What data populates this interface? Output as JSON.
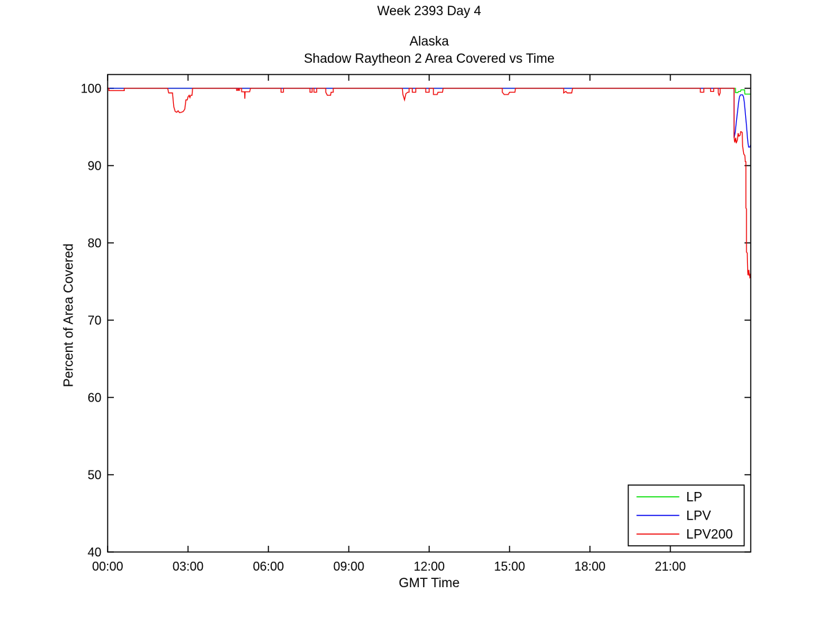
{
  "figure": {
    "background": "#ffffff",
    "text_color": "#000000"
  },
  "chart_data": {
    "type": "line",
    "title": "Week 2393 Day 4",
    "subtitle1": "Alaska",
    "subtitle2": "Shadow Raytheon 2 Area Covered vs Time",
    "xlabel": "GMT Time",
    "ylabel": "Percent of Area Covered",
    "xlim_hours": [
      0,
      24
    ],
    "ylim": [
      40,
      101.8
    ],
    "grid": false,
    "axis_color": "#000000",
    "x_tick_hours": [
      0,
      3,
      6,
      9,
      12,
      15,
      18,
      21
    ],
    "x_tick_labels": [
      "00:00",
      "03:00",
      "06:00",
      "09:00",
      "12:00",
      "15:00",
      "18:00",
      "21:00"
    ],
    "y_ticks": [
      40,
      50,
      60,
      70,
      80,
      90,
      100
    ],
    "y_tick_labels": [
      "40",
      "50",
      "60",
      "70",
      "80",
      "90",
      "100"
    ],
    "legend": {
      "position": "bottom-right",
      "entries": [
        {
          "label": "LP",
          "color": "#00dd00"
        },
        {
          "label": "LPV",
          "color": "#0000ee"
        },
        {
          "label": "LPV200",
          "color": "#ee0000"
        }
      ]
    },
    "series": [
      {
        "name": "LP",
        "color": "#00dd00",
        "points": [
          [
            0,
            100
          ],
          [
            23.43,
            100
          ],
          [
            23.43,
            99.45
          ],
          [
            23.52,
            99.45
          ],
          [
            23.55,
            99.6
          ],
          [
            23.62,
            99.6
          ],
          [
            23.64,
            99.8
          ],
          [
            23.77,
            99.8
          ],
          [
            23.78,
            99.25
          ],
          [
            24,
            99.25
          ]
        ]
      },
      {
        "name": "LPV",
        "color": "#0000ee",
        "points": [
          [
            0,
            100
          ],
          [
            23.38,
            100
          ],
          [
            23.38,
            93.6
          ],
          [
            23.42,
            94.3
          ],
          [
            23.46,
            95.5
          ],
          [
            23.5,
            96.8
          ],
          [
            23.55,
            98.2
          ],
          [
            23.58,
            98.9
          ],
          [
            23.62,
            99.15
          ],
          [
            23.7,
            99.15
          ],
          [
            23.73,
            98.9
          ],
          [
            23.76,
            98.2
          ],
          [
            23.79,
            97.2
          ],
          [
            23.82,
            96.0
          ],
          [
            23.85,
            94.8
          ],
          [
            23.88,
            93.6
          ],
          [
            23.9,
            92.9
          ],
          [
            23.92,
            92.4
          ],
          [
            23.97,
            92.4
          ],
          [
            24,
            92.7
          ]
        ]
      },
      {
        "name": "LPV200",
        "color": "#ee0000",
        "points": [
          [
            0,
            100
          ],
          [
            0.05,
            100
          ],
          [
            0.05,
            99.7
          ],
          [
            0.62,
            99.7
          ],
          [
            0.62,
            100
          ],
          [
            2.24,
            100
          ],
          [
            2.28,
            99.4
          ],
          [
            2.42,
            99.4
          ],
          [
            2.47,
            97.6
          ],
          [
            2.52,
            97.0
          ],
          [
            2.58,
            96.9
          ],
          [
            2.63,
            97.1
          ],
          [
            2.68,
            96.85
          ],
          [
            2.75,
            96.9
          ],
          [
            2.82,
            97.0
          ],
          [
            2.88,
            97.3
          ],
          [
            2.92,
            98.5
          ],
          [
            2.97,
            98.5
          ],
          [
            3.0,
            98.9
          ],
          [
            3.04,
            99.1
          ],
          [
            3.07,
            98.8
          ],
          [
            3.1,
            99.1
          ],
          [
            3.15,
            99.1
          ],
          [
            3.17,
            100
          ],
          [
            4.81,
            100
          ],
          [
            4.81,
            99.75
          ],
          [
            4.86,
            99.75
          ],
          [
            4.86,
            100
          ],
          [
            4.88,
            100
          ],
          [
            4.88,
            99.75
          ],
          [
            4.92,
            99.75
          ],
          [
            4.92,
            100
          ],
          [
            5.0,
            100
          ],
          [
            5.0,
            99.55
          ],
          [
            5.11,
            99.55
          ],
          [
            5.12,
            98.65
          ],
          [
            5.13,
            99.55
          ],
          [
            5.3,
            99.55
          ],
          [
            5.33,
            100
          ],
          [
            6.47,
            100
          ],
          [
            6.47,
            99.5
          ],
          [
            6.56,
            99.5
          ],
          [
            6.56,
            100
          ],
          [
            7.55,
            100
          ],
          [
            7.55,
            99.5
          ],
          [
            7.63,
            99.5
          ],
          [
            7.63,
            100
          ],
          [
            7.7,
            100
          ],
          [
            7.7,
            99.5
          ],
          [
            7.8,
            99.5
          ],
          [
            7.8,
            100
          ],
          [
            8.14,
            100
          ],
          [
            8.14,
            99.5
          ],
          [
            8.2,
            99.1
          ],
          [
            8.32,
            99.1
          ],
          [
            8.34,
            99.5
          ],
          [
            8.42,
            99.5
          ],
          [
            8.42,
            100
          ],
          [
            11.0,
            100
          ],
          [
            11.02,
            99.2
          ],
          [
            11.08,
            98.5
          ],
          [
            11.13,
            99.3
          ],
          [
            11.2,
            99.5
          ],
          [
            11.25,
            99.5
          ],
          [
            11.25,
            100
          ],
          [
            11.37,
            100
          ],
          [
            11.37,
            99.5
          ],
          [
            11.5,
            99.5
          ],
          [
            11.5,
            100
          ],
          [
            11.87,
            100
          ],
          [
            11.87,
            99.5
          ],
          [
            12.0,
            99.5
          ],
          [
            12.0,
            100
          ],
          [
            12.16,
            100
          ],
          [
            12.16,
            99.2
          ],
          [
            12.3,
            99.2
          ],
          [
            12.33,
            99.5
          ],
          [
            12.5,
            99.5
          ],
          [
            12.52,
            100
          ],
          [
            14.73,
            100
          ],
          [
            14.73,
            99.5
          ],
          [
            14.8,
            99.2
          ],
          [
            14.95,
            99.2
          ],
          [
            15.0,
            99.5
          ],
          [
            15.2,
            99.5
          ],
          [
            15.22,
            100
          ],
          [
            17.02,
            100
          ],
          [
            17.02,
            99.4
          ],
          [
            17.1,
            99.6
          ],
          [
            17.15,
            99.4
          ],
          [
            17.32,
            99.4
          ],
          [
            17.35,
            100
          ],
          [
            22.12,
            100
          ],
          [
            22.12,
            99.5
          ],
          [
            22.25,
            99.5
          ],
          [
            22.25,
            100
          ],
          [
            22.5,
            100
          ],
          [
            22.5,
            99.6
          ],
          [
            22.62,
            99.6
          ],
          [
            22.62,
            100
          ],
          [
            22.79,
            100
          ],
          [
            22.79,
            99.4
          ],
          [
            22.82,
            99.1
          ],
          [
            22.86,
            99.4
          ],
          [
            22.86,
            100
          ],
          [
            23.38,
            100
          ],
          [
            23.38,
            93.7
          ],
          [
            23.4,
            93.0
          ],
          [
            23.44,
            93.6
          ],
          [
            23.46,
            92.9
          ],
          [
            23.5,
            93.3
          ],
          [
            23.53,
            94.2
          ],
          [
            23.56,
            93.8
          ],
          [
            23.6,
            93.9
          ],
          [
            23.63,
            94.4
          ],
          [
            23.68,
            94.3
          ],
          [
            23.7,
            92.5
          ],
          [
            23.74,
            91.5
          ],
          [
            23.78,
            91.3
          ],
          [
            23.8,
            90.5
          ],
          [
            23.82,
            90.5
          ],
          [
            23.82,
            84.5
          ],
          [
            23.84,
            84.4
          ],
          [
            23.84,
            78.8
          ],
          [
            23.87,
            78.7
          ],
          [
            23.89,
            76.3
          ],
          [
            23.9,
            75.8
          ],
          [
            23.93,
            76.5
          ],
          [
            23.95,
            75.7
          ],
          [
            23.97,
            76.0
          ],
          [
            23.97,
            75.5
          ],
          [
            24,
            75.6
          ]
        ]
      }
    ]
  }
}
